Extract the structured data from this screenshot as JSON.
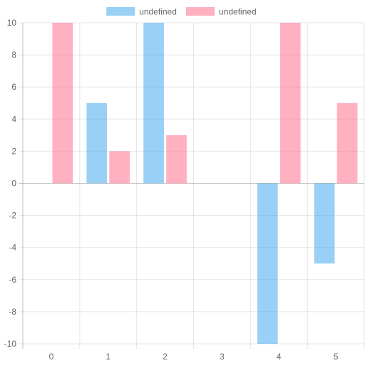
{
  "chart_data": {
    "type": "bar",
    "categories": [
      "0",
      "1",
      "2",
      "3",
      "4",
      "5"
    ],
    "series": [
      {
        "name": "undefined",
        "color": "#36a2eb",
        "values": [
          null,
          5,
          10,
          null,
          -10,
          -5
        ]
      },
      {
        "name": "undefined",
        "color": "#ff6384",
        "values": [
          10,
          2,
          3,
          null,
          10,
          5
        ]
      }
    ],
    "ylim": [
      -10,
      10
    ],
    "yticks": [
      10,
      8,
      6,
      4,
      2,
      0,
      -2,
      -4,
      -6,
      -8,
      -10
    ],
    "grid": true,
    "legend": "top"
  }
}
